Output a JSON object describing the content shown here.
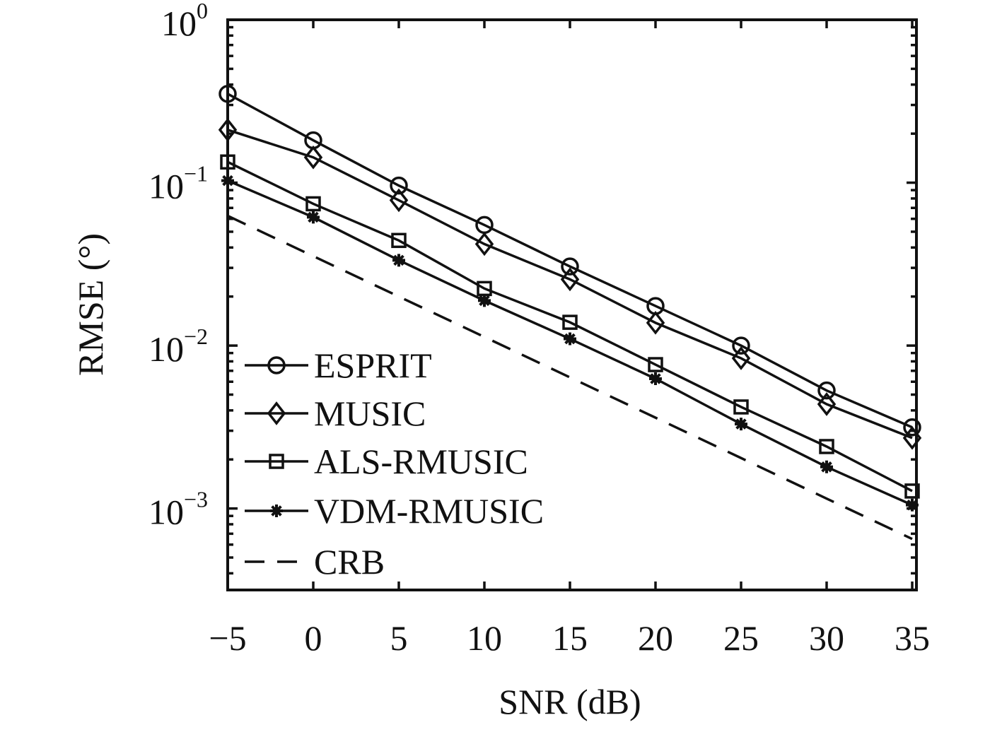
{
  "chart_data": {
    "type": "line",
    "title": "",
    "xlabel": "SNR (dB)",
    "ylabel": "RMSE (°)",
    "xlim": [
      -5,
      35
    ],
    "ylim": [
      0.000316,
      1
    ],
    "yscale": "log",
    "grid": false,
    "legend_position": "bottom-left",
    "x": [
      -5,
      0,
      5,
      10,
      15,
      20,
      25,
      30,
      35
    ],
    "x_ticks": [
      "−5",
      "0",
      "5",
      "10",
      "15",
      "20",
      "25",
      "30",
      "35"
    ],
    "y_ticks": [
      {
        "base": "10",
        "exp": "0",
        "value": 1
      },
      {
        "base": "10",
        "exp": "−1",
        "value": 0.1
      },
      {
        "base": "10",
        "exp": "−2",
        "value": 0.01
      },
      {
        "base": "10",
        "exp": "−3",
        "value": 0.001
      }
    ],
    "series": [
      {
        "name": "ESPRIT",
        "marker": "circle",
        "dash": false,
        "values": [
          0.351,
          0.182,
          0.096,
          0.055,
          0.0306,
          0.0175,
          0.01,
          0.0053,
          0.00315
        ]
      },
      {
        "name": "MUSIC",
        "marker": "diamond",
        "dash": false,
        "values": [
          0.211,
          0.143,
          0.078,
          0.042,
          0.0255,
          0.0138,
          0.00836,
          0.00437,
          0.00271
        ]
      },
      {
        "name": "ALS-RMUSIC",
        "marker": "square",
        "dash": false,
        "values": [
          0.134,
          0.0742,
          0.0442,
          0.0224,
          0.0139,
          0.00764,
          0.0042,
          0.0024,
          0.00128
        ]
      },
      {
        "name": "VDM-RMUSIC",
        "marker": "asterisk",
        "dash": false,
        "values": [
          0.103,
          0.0614,
          0.0334,
          0.0189,
          0.011,
          0.00626,
          0.0033,
          0.0018,
          0.00105
        ]
      },
      {
        "name": "CRB",
        "marker": "none",
        "dash": true,
        "values": [
          0.0626,
          0.0354,
          0.02,
          0.0113,
          0.00638,
          0.00361,
          0.00204,
          0.00115,
          0.00065
        ]
      }
    ],
    "colors": {
      "line": "#111111",
      "background": "#ffffff"
    }
  }
}
